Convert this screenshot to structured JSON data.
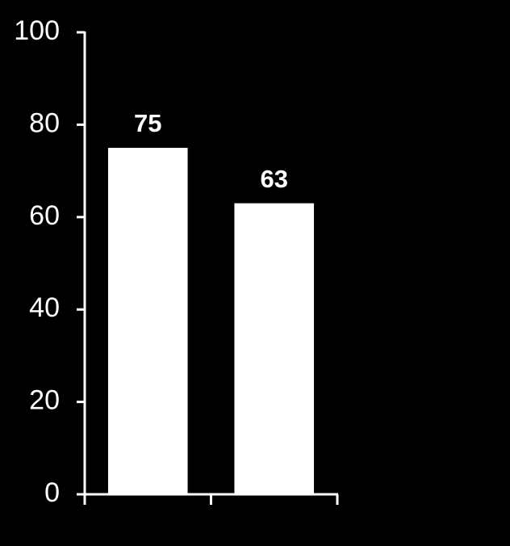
{
  "chart_data": {
    "type": "bar",
    "categories": [
      null,
      null
    ],
    "values": [
      75,
      63
    ],
    "color": "#ffffff",
    "ylim": [
      0,
      100
    ],
    "yticks": [
      0,
      20,
      40,
      60,
      80,
      100
    ],
    "grid": false
  }
}
